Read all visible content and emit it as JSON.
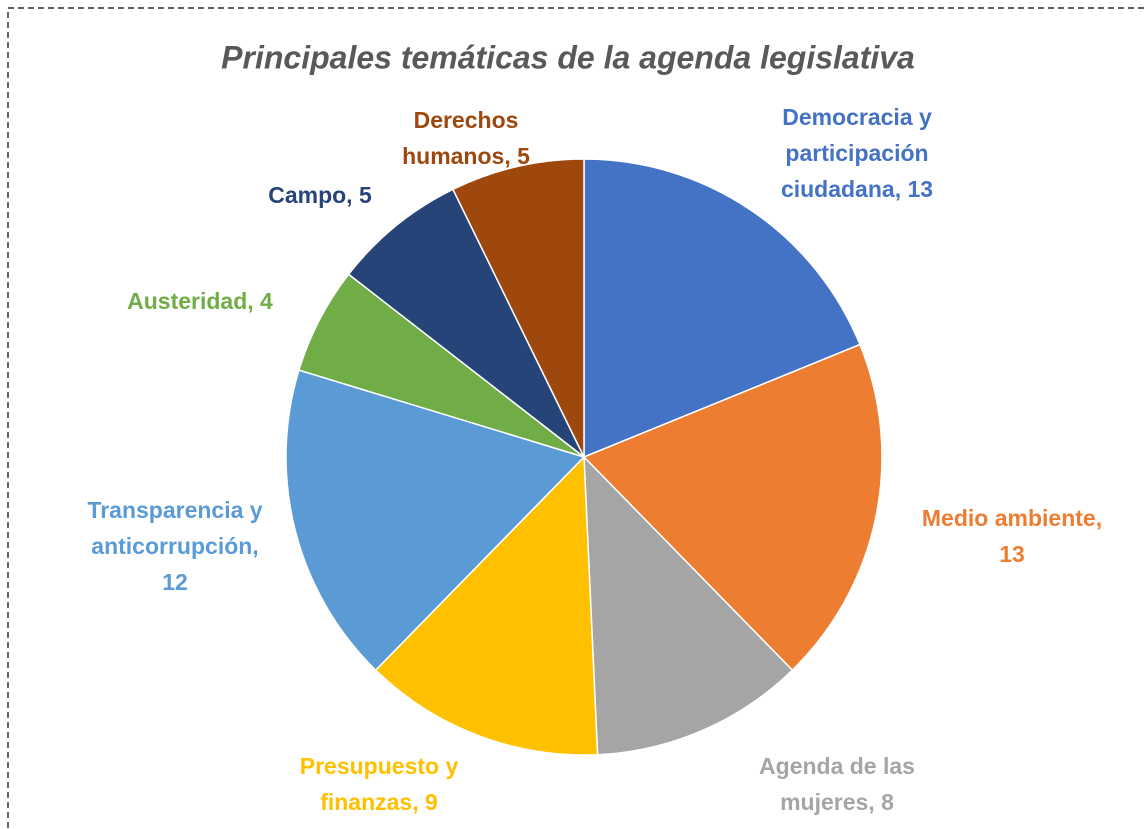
{
  "chart_data": {
    "type": "pie",
    "title": "Principales temáticas de la agenda legislativa",
    "categories": [
      "Democracia y participación ciudadana, 13",
      "Medio ambiente, 13",
      "Agenda de las mujeres, 8",
      "Presupuesto y finanzas, 9",
      "Transparencia y anticorrupción, 12",
      "Austeridad, 4",
      "Campo, 5",
      "Derechos humanos, 5"
    ],
    "values": [
      13,
      13,
      8,
      9,
      12,
      4,
      5,
      5
    ],
    "colors": [
      "#4472c4",
      "#ed7d31",
      "#a5a5a5",
      "#ffc000",
      "#5b9bd5",
      "#70ad47",
      "#264478",
      "#9e480e"
    ]
  }
}
